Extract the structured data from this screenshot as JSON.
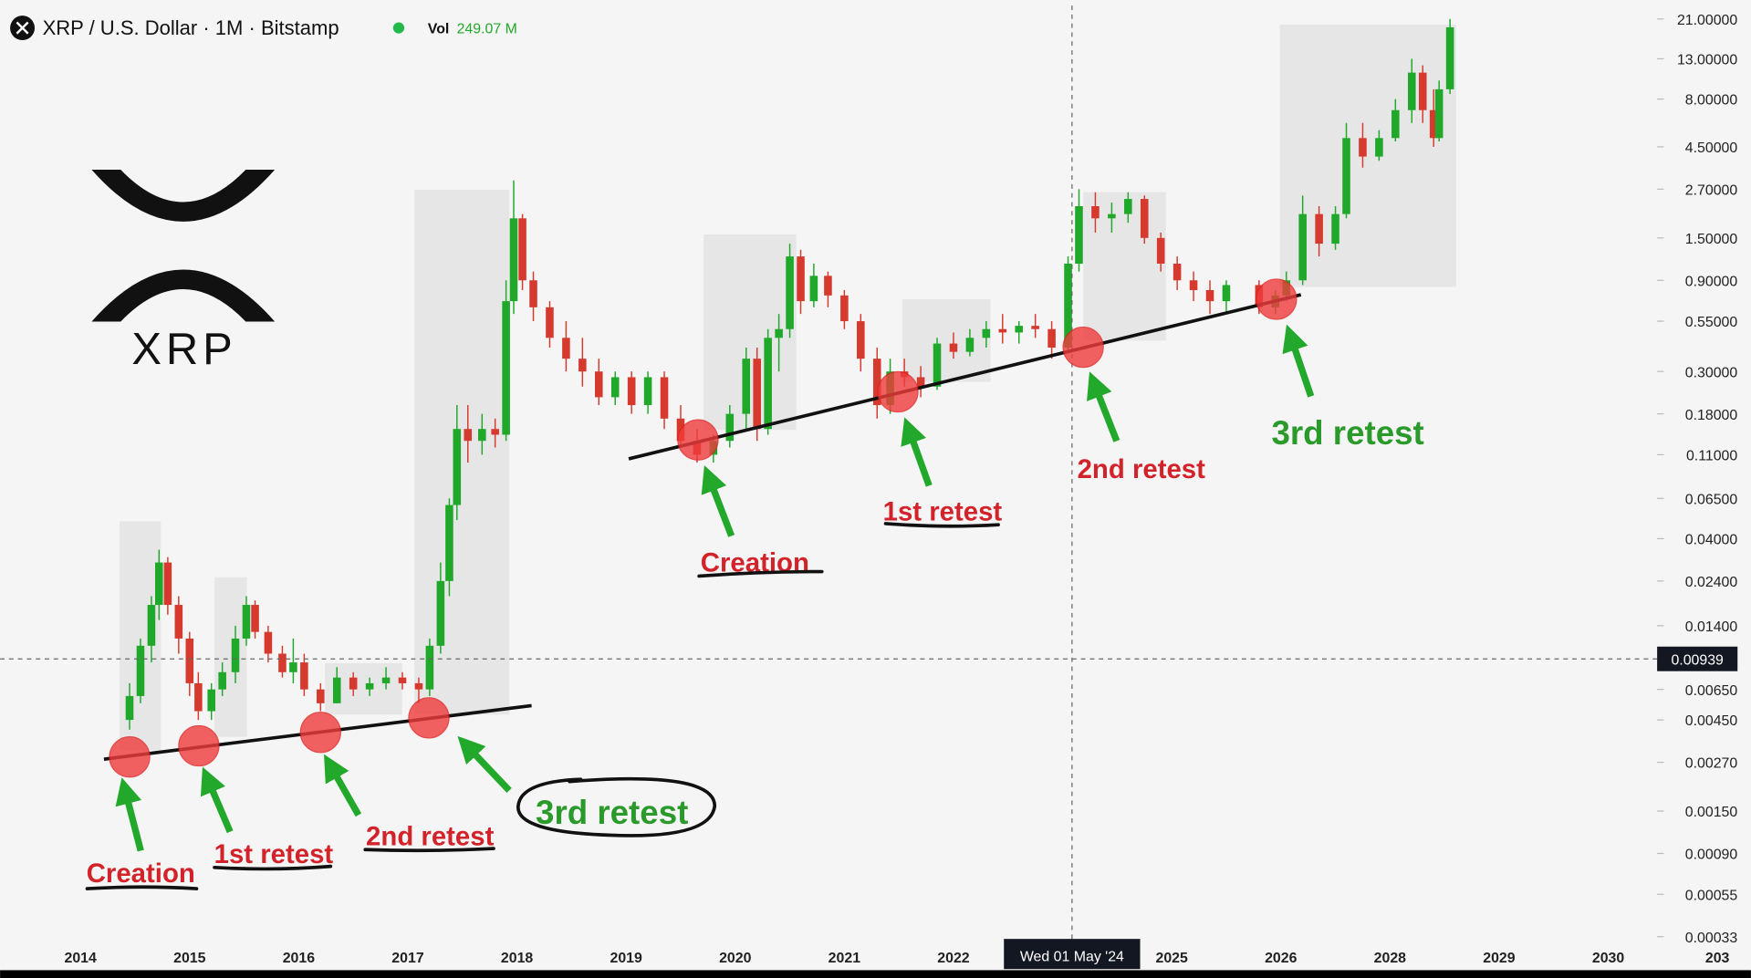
{
  "header": {
    "symbol": "XRP / U.S. Dollar · 1M · Bitstamp",
    "vol_label": "Vol",
    "vol_value": "249.07 M"
  },
  "logo": {
    "text": "XRP"
  },
  "annotations": {
    "creation_1": "Creation",
    "retest1_1": "1st retest",
    "retest2_1": "2nd retest",
    "retest3_1": "3rd retest",
    "creation_2": "Creation",
    "retest1_2": "1st retest",
    "retest2_2": "2nd retest",
    "retest3_2": "3rd retest"
  },
  "chart_data": {
    "type": "candlestick",
    "log_scale": true,
    "up_color": "#1fa82a",
    "down_color": "#d63a2f",
    "categories": [
      "2014",
      "2015",
      "2016",
      "2017",
      "2018",
      "2019",
      "2020",
      "2021",
      "2022",
      null,
      "2025",
      "2026",
      "2028",
      "2029",
      "2030",
      "203"
    ],
    "ylim": [
      0.00033,
      21
    ],
    "yticks": [
      {
        "value": 21,
        "label": "21.00000"
      },
      {
        "value": 13,
        "label": "13.00000"
      },
      {
        "value": 8,
        "label": "8.00000"
      },
      {
        "value": 4.5,
        "label": "4.50000"
      },
      {
        "value": 2.7,
        "label": "2.70000"
      },
      {
        "value": 1.5,
        "label": "1.50000"
      },
      {
        "value": 0.9,
        "label": "0.90000"
      },
      {
        "value": 0.55,
        "label": "0.55000"
      },
      {
        "value": 0.3,
        "label": "0.30000"
      },
      {
        "value": 0.18,
        "label": "0.18000"
      },
      {
        "value": 0.11,
        "label": "0.11000"
      },
      {
        "value": 0.065,
        "label": "0.06500"
      },
      {
        "value": 0.04,
        "label": "0.04000"
      },
      {
        "value": 0.024,
        "label": "0.02400"
      },
      {
        "value": 0.014,
        "label": "0.01400"
      },
      {
        "value": 0.0065,
        "label": "0.00650"
      },
      {
        "value": 0.0045,
        "label": "0.00450"
      },
      {
        "value": 0.0027,
        "label": "0.00270"
      },
      {
        "value": 0.0015,
        "label": "0.00150"
      },
      {
        "value": 0.0009,
        "label": "0.00090"
      },
      {
        "value": 0.00055,
        "label": "0.00055"
      },
      {
        "value": 0.00033,
        "label": "0.00033"
      }
    ],
    "crosshair_x_label": "Wed 01 May '24",
    "crosshair_y": 0.00939,
    "candles": [
      {
        "x": 0.45,
        "open": 0.0045,
        "high": 0.007,
        "low": 0.004,
        "close": 0.006
      },
      {
        "x": 0.55,
        "open": 0.006,
        "high": 0.012,
        "low": 0.0055,
        "close": 0.011
      },
      {
        "x": 0.65,
        "open": 0.011,
        "high": 0.02,
        "low": 0.009,
        "close": 0.018
      },
      {
        "x": 0.72,
        "open": 0.018,
        "high": 0.035,
        "low": 0.015,
        "close": 0.03
      },
      {
        "x": 0.8,
        "open": 0.03,
        "high": 0.032,
        "low": 0.016,
        "close": 0.018
      },
      {
        "x": 0.9,
        "open": 0.018,
        "high": 0.02,
        "low": 0.01,
        "close": 0.012
      },
      {
        "x": 1.0,
        "open": 0.012,
        "high": 0.013,
        "low": 0.006,
        "close": 0.007
      },
      {
        "x": 1.08,
        "open": 0.007,
        "high": 0.008,
        "low": 0.0045,
        "close": 0.005
      },
      {
        "x": 1.2,
        "open": 0.005,
        "high": 0.007,
        "low": 0.0045,
        "close": 0.0065
      },
      {
        "x": 1.3,
        "open": 0.0065,
        "high": 0.009,
        "low": 0.006,
        "close": 0.008
      },
      {
        "x": 1.42,
        "open": 0.008,
        "high": 0.014,
        "low": 0.007,
        "close": 0.012
      },
      {
        "x": 1.52,
        "open": 0.012,
        "high": 0.02,
        "low": 0.011,
        "close": 0.018
      },
      {
        "x": 1.6,
        "open": 0.018,
        "high": 0.019,
        "low": 0.012,
        "close": 0.013
      },
      {
        "x": 1.72,
        "open": 0.013,
        "high": 0.014,
        "low": 0.009,
        "close": 0.01
      },
      {
        "x": 1.85,
        "open": 0.01,
        "high": 0.011,
        "low": 0.0075,
        "close": 0.008
      },
      {
        "x": 1.95,
        "open": 0.008,
        "high": 0.012,
        "low": 0.007,
        "close": 0.009
      },
      {
        "x": 2.05,
        "open": 0.009,
        "high": 0.01,
        "low": 0.006,
        "close": 0.0065
      },
      {
        "x": 2.2,
        "open": 0.0065,
        "high": 0.007,
        "low": 0.005,
        "close": 0.0055
      },
      {
        "x": 2.35,
        "open": 0.0055,
        "high": 0.0085,
        "low": 0.0055,
        "close": 0.0075
      },
      {
        "x": 2.5,
        "open": 0.0075,
        "high": 0.008,
        "low": 0.006,
        "close": 0.0065
      },
      {
        "x": 2.65,
        "open": 0.0065,
        "high": 0.0075,
        "low": 0.006,
        "close": 0.007
      },
      {
        "x": 2.8,
        "open": 0.007,
        "high": 0.0085,
        "low": 0.0065,
        "close": 0.0075
      },
      {
        "x": 2.95,
        "open": 0.0075,
        "high": 0.008,
        "low": 0.0065,
        "close": 0.007
      },
      {
        "x": 3.1,
        "open": 0.007,
        "high": 0.0075,
        "low": 0.0055,
        "close": 0.0065
      },
      {
        "x": 3.2,
        "open": 0.0065,
        "high": 0.012,
        "low": 0.006,
        "close": 0.011
      },
      {
        "x": 3.3,
        "open": 0.011,
        "high": 0.03,
        "low": 0.01,
        "close": 0.024
      },
      {
        "x": 3.38,
        "open": 0.024,
        "high": 0.065,
        "low": 0.02,
        "close": 0.06
      },
      {
        "x": 3.45,
        "open": 0.06,
        "high": 0.2,
        "low": 0.05,
        "close": 0.15
      },
      {
        "x": 3.55,
        "open": 0.15,
        "high": 0.2,
        "low": 0.1,
        "close": 0.13
      },
      {
        "x": 3.68,
        "open": 0.13,
        "high": 0.18,
        "low": 0.11,
        "close": 0.15
      },
      {
        "x": 3.8,
        "open": 0.15,
        "high": 0.17,
        "low": 0.12,
        "close": 0.14
      },
      {
        "x": 3.9,
        "open": 0.14,
        "high": 0.9,
        "low": 0.13,
        "close": 0.7
      },
      {
        "x": 3.97,
        "open": 0.7,
        "high": 3,
        "low": 0.6,
        "close": 1.9
      },
      {
        "x": 4.05,
        "open": 1.9,
        "high": 2,
        "low": 0.8,
        "close": 0.9
      },
      {
        "x": 4.15,
        "open": 0.9,
        "high": 1.0,
        "low": 0.55,
        "close": 0.65
      },
      {
        "x": 4.3,
        "open": 0.65,
        "high": 0.7,
        "low": 0.4,
        "close": 0.45
      },
      {
        "x": 4.45,
        "open": 0.45,
        "high": 0.55,
        "low": 0.3,
        "close": 0.35
      },
      {
        "x": 4.6,
        "open": 0.35,
        "high": 0.45,
        "low": 0.25,
        "close": 0.3
      },
      {
        "x": 4.75,
        "open": 0.3,
        "high": 0.35,
        "low": 0.2,
        "close": 0.22
      },
      {
        "x": 4.9,
        "open": 0.22,
        "high": 0.3,
        "low": 0.2,
        "close": 0.28
      },
      {
        "x": 5.05,
        "open": 0.28,
        "high": 0.3,
        "low": 0.18,
        "close": 0.2
      },
      {
        "x": 5.2,
        "open": 0.2,
        "high": 0.3,
        "low": 0.18,
        "close": 0.28
      },
      {
        "x": 5.35,
        "open": 0.28,
        "high": 0.3,
        "low": 0.15,
        "close": 0.17
      },
      {
        "x": 5.5,
        "open": 0.17,
        "high": 0.2,
        "low": 0.12,
        "close": 0.13
      },
      {
        "x": 5.65,
        "open": 0.13,
        "high": 0.15,
        "low": 0.1,
        "close": 0.11
      },
      {
        "x": 5.8,
        "open": 0.11,
        "high": 0.14,
        "low": 0.1,
        "close": 0.13
      },
      {
        "x": 5.95,
        "open": 0.13,
        "high": 0.2,
        "low": 0.12,
        "close": 0.18
      },
      {
        "x": 6.1,
        "open": 0.18,
        "high": 0.4,
        "low": 0.15,
        "close": 0.35
      },
      {
        "x": 6.2,
        "open": 0.35,
        "high": 0.4,
        "low": 0.13,
        "close": 0.15
      },
      {
        "x": 6.3,
        "open": 0.15,
        "high": 0.5,
        "low": 0.14,
        "close": 0.45
      },
      {
        "x": 6.4,
        "open": 0.45,
        "high": 0.6,
        "low": 0.3,
        "close": 0.5
      },
      {
        "x": 6.5,
        "open": 0.5,
        "high": 1.4,
        "low": 0.45,
        "close": 1.2
      },
      {
        "x": 6.6,
        "open": 1.2,
        "high": 1.3,
        "low": 0.6,
        "close": 0.7
      },
      {
        "x": 6.72,
        "open": 0.7,
        "high": 1.1,
        "low": 0.65,
        "close": 0.95
      },
      {
        "x": 6.85,
        "open": 0.95,
        "high": 1.0,
        "low": 0.65,
        "close": 0.75
      },
      {
        "x": 7.0,
        "open": 0.75,
        "high": 0.8,
        "low": 0.5,
        "close": 0.55
      },
      {
        "x": 7.15,
        "open": 0.55,
        "high": 0.6,
        "low": 0.3,
        "close": 0.35
      },
      {
        "x": 7.3,
        "open": 0.35,
        "high": 0.4,
        "low": 0.17,
        "close": 0.2
      },
      {
        "x": 7.42,
        "open": 0.2,
        "high": 0.35,
        "low": 0.18,
        "close": 0.3
      },
      {
        "x": 7.55,
        "open": 0.3,
        "high": 0.35,
        "low": 0.25,
        "close": 0.28
      },
      {
        "x": 7.7,
        "open": 0.28,
        "high": 0.32,
        "low": 0.22,
        "close": 0.25
      },
      {
        "x": 7.85,
        "open": 0.25,
        "high": 0.45,
        "low": 0.24,
        "close": 0.42
      },
      {
        "x": 8.0,
        "open": 0.42,
        "high": 0.48,
        "low": 0.35,
        "close": 0.38
      },
      {
        "x": 8.15,
        "open": 0.38,
        "high": 0.5,
        "low": 0.36,
        "close": 0.45
      },
      {
        "x": 8.3,
        "open": 0.45,
        "high": 0.55,
        "low": 0.4,
        "close": 0.5
      },
      {
        "x": 8.45,
        "open": 0.5,
        "high": 0.6,
        "low": 0.42,
        "close": 0.48
      },
      {
        "x": 8.6,
        "open": 0.48,
        "high": 0.55,
        "low": 0.42,
        "close": 0.52
      },
      {
        "x": 8.75,
        "open": 0.52,
        "high": 0.6,
        "low": 0.45,
        "close": 0.5
      },
      {
        "x": 8.9,
        "open": 0.5,
        "high": 0.55,
        "low": 0.35,
        "close": 0.4
      },
      {
        "x": 9.05,
        "open": 0.4,
        "high": 1.2,
        "low": 0.38,
        "close": 1.1
      },
      {
        "x": 9.15,
        "open": 1.1,
        "high": 2.7,
        "low": 1.0,
        "close": 2.2
      },
      {
        "x": 9.3,
        "open": 2.2,
        "high": 2.6,
        "low": 1.6,
        "close": 1.9
      },
      {
        "x": 9.45,
        "open": 1.9,
        "high": 2.3,
        "low": 1.6,
        "close": 2.0
      },
      {
        "x": 9.6,
        "open": 2.0,
        "high": 2.6,
        "low": 1.8,
        "close": 2.4
      },
      {
        "x": 9.75,
        "open": 2.4,
        "high": 2.5,
        "low": 1.4,
        "close": 1.5
      },
      {
        "x": 9.9,
        "open": 1.5,
        "high": 1.6,
        "low": 1.0,
        "close": 1.1
      },
      {
        "x": 10.05,
        "open": 1.1,
        "high": 1.2,
        "low": 0.8,
        "close": 0.9
      },
      {
        "x": 10.2,
        "open": 0.9,
        "high": 1.0,
        "low": 0.7,
        "close": 0.8
      },
      {
        "x": 10.35,
        "open": 0.8,
        "high": 0.9,
        "low": 0.6,
        "close": 0.7
      },
      {
        "x": 10.5,
        "open": 0.7,
        "high": 0.9,
        "low": 0.6,
        "close": 0.85
      },
      {
        "x": 10.8,
        "open": 0.85,
        "high": 0.9,
        "low": 0.6,
        "close": 0.65
      },
      {
        "x": 10.95,
        "open": 0.65,
        "high": 0.8,
        "low": 0.6,
        "close": 0.75
      },
      {
        "x": 11.05,
        "open": 0.75,
        "high": 1.0,
        "low": 0.7,
        "close": 0.9
      },
      {
        "x": 11.2,
        "open": 0.9,
        "high": 2.5,
        "low": 0.85,
        "close": 2.0
      },
      {
        "x": 11.35,
        "open": 2.0,
        "high": 2.2,
        "low": 1.2,
        "close": 1.4
      },
      {
        "x": 11.5,
        "open": 1.4,
        "high": 2.2,
        "low": 1.3,
        "close": 2.0
      },
      {
        "x": 11.6,
        "open": 2.0,
        "high": 6,
        "low": 1.9,
        "close": 5
      },
      {
        "x": 11.75,
        "open": 5,
        "high": 6,
        "low": 3.5,
        "close": 4
      },
      {
        "x": 11.9,
        "open": 4,
        "high": 5.5,
        "low": 3.8,
        "close": 5
      },
      {
        "x": 12.05,
        "open": 5,
        "high": 8,
        "low": 4.8,
        "close": 7
      },
      {
        "x": 12.2,
        "open": 7,
        "high": 13,
        "low": 6,
        "close": 11
      },
      {
        "x": 12.3,
        "open": 11,
        "high": 12,
        "low": 6,
        "close": 7
      },
      {
        "x": 12.4,
        "open": 7,
        "high": 9,
        "low": 4.5,
        "close": 5
      },
      {
        "x": 12.45,
        "open": 5,
        "high": 10,
        "low": 4.8,
        "close": 9
      },
      {
        "x": 12.55,
        "open": 9,
        "high": 21,
        "low": 8.5,
        "close": 19
      }
    ]
  }
}
